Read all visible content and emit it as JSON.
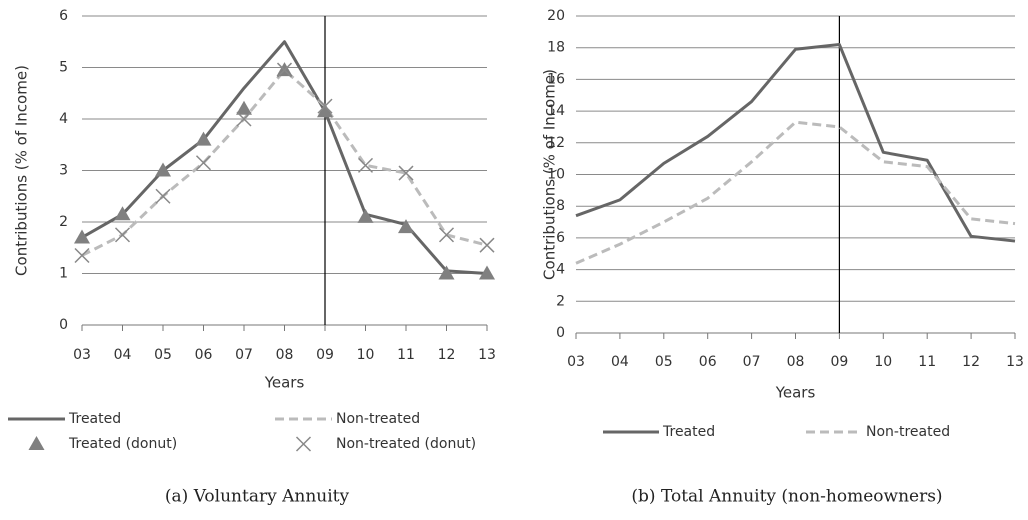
{
  "chart_data": [
    {
      "type": "line",
      "caption": "(a) Voluntary Annuity",
      "x_label": "Years",
      "y_label": "Contributions (% of Income)",
      "categories": [
        "03",
        "04",
        "05",
        "06",
        "07",
        "08",
        "09",
        "10",
        "11",
        "12",
        "13"
      ],
      "ylim": [
        0,
        6
      ],
      "yticks": [
        0,
        1,
        2,
        3,
        4,
        5,
        6
      ],
      "grid": true,
      "vline": "09",
      "legend": "bottom",
      "series": [
        {
          "name": "Treated",
          "color": "#666666",
          "style": "solid",
          "values": [
            1.7,
            2.15,
            3.0,
            3.6,
            4.6,
            5.5,
            4.15,
            2.15,
            1.95,
            1.05,
            1.0
          ]
        },
        {
          "name": "Non-treated",
          "color": "#bbbbbb",
          "style": "dashed",
          "values": [
            1.35,
            1.75,
            2.5,
            3.15,
            4.0,
            4.95,
            4.25,
            3.1,
            2.95,
            1.75,
            1.55
          ]
        },
        {
          "name": "Treated (donut)",
          "color": "#808080",
          "marker": "triangle",
          "values": [
            1.7,
            2.15,
            3.0,
            3.6,
            4.2,
            4.95,
            4.15,
            2.1,
            1.9,
            1.0,
            1.0
          ]
        },
        {
          "name": "Non-treated (donut)",
          "color": "#888888",
          "marker": "x",
          "values": [
            1.35,
            1.75,
            2.5,
            3.15,
            4.0,
            4.95,
            4.25,
            3.1,
            2.95,
            1.75,
            1.55
          ]
        }
      ]
    },
    {
      "type": "line",
      "caption": "(b) Total Annuity (non-homeowners)",
      "x_label": "Years",
      "y_label": "Contributions (% of Income)",
      "categories": [
        "03",
        "04",
        "05",
        "06",
        "07",
        "08",
        "09",
        "10",
        "11",
        "12",
        "13"
      ],
      "ylim": [
        0,
        20
      ],
      "yticks": [
        0,
        2,
        4,
        6,
        8,
        10,
        12,
        14,
        16,
        18,
        20
      ],
      "grid": true,
      "vline": "09",
      "legend": "bottom",
      "series": [
        {
          "name": "Treated",
          "color": "#666666",
          "style": "solid",
          "values": [
            7.4,
            8.4,
            10.7,
            12.4,
            14.6,
            17.9,
            18.2,
            11.4,
            10.9,
            6.1,
            5.8
          ]
        },
        {
          "name": "Non-treated",
          "color": "#bbbbbb",
          "style": "dashed",
          "values": [
            4.4,
            5.6,
            7.0,
            8.5,
            10.8,
            13.3,
            13.0,
            10.8,
            10.5,
            7.2,
            6.9
          ]
        }
      ]
    }
  ]
}
